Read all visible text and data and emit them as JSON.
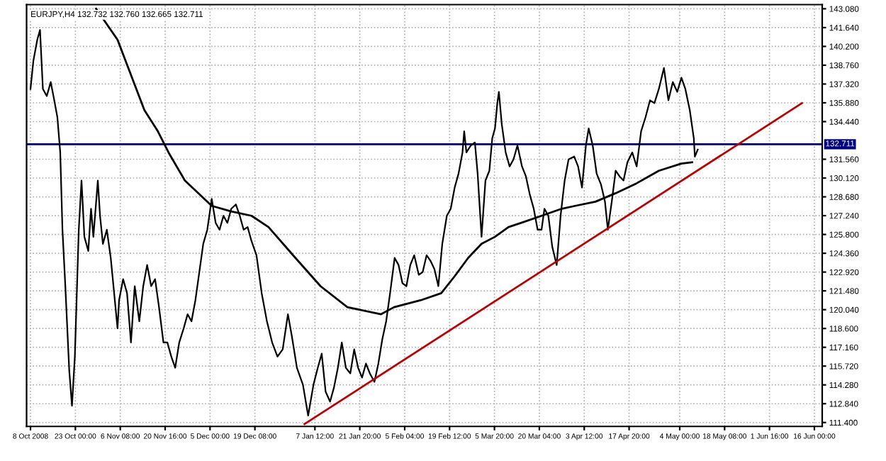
{
  "chart_data": {
    "type": "line",
    "title": "EURJPY,H4 132.732 132.760 132.665 132.711",
    "xlim": [
      "2008-10-07T10:00",
      "2009-06-18T12:00"
    ],
    "ylim": [
      111.1,
      143.4
    ],
    "xticks": [
      {
        "value": "2008-10-08T16:00",
        "label": "8 Oct 2008"
      },
      {
        "value": "2008-10-23T00:00",
        "label": "23 Oct 00:00"
      },
      {
        "value": "2008-11-06T08:00",
        "label": "6 Nov 08:00"
      },
      {
        "value": "2008-11-20T16:00",
        "label": "20 Nov 16:00"
      },
      {
        "value": "2008-12-05T00:00",
        "label": "5 Dec 00:00"
      },
      {
        "value": "2008-12-19T08:00",
        "label": "19 Dec 08:00"
      },
      {
        "value": "2009-01-07T12:00",
        "label": "7 Jan 12:00"
      },
      {
        "value": "2009-01-21T20:00",
        "label": "21 Jan 20:00"
      },
      {
        "value": "2009-02-05T04:00",
        "label": "5 Feb 04:00"
      },
      {
        "value": "2009-02-19T12:00",
        "label": "19 Feb 12:00"
      },
      {
        "value": "2009-03-05T20:00",
        "label": "5 Mar 20:00"
      },
      {
        "value": "2009-03-20T04:00",
        "label": "20 Mar 04:00"
      },
      {
        "value": "2009-04-03T12:00",
        "label": "3 Apr 12:00"
      },
      {
        "value": "2009-04-17T20:00",
        "label": "17 Apr 20:00"
      },
      {
        "value": "2009-05-04T00:00",
        "label": "4 May 00:00"
      },
      {
        "value": "2009-05-18T08:00",
        "label": "18 May 08:00"
      },
      {
        "value": "2009-06-01T16:00",
        "label": "1 Jun 16:00"
      },
      {
        "value": "2009-06-16T00:00",
        "label": "16 Jun 00:00"
      }
    ],
    "yticks": [
      {
        "value": 111.4,
        "label": "111.400"
      },
      {
        "value": 112.84,
        "label": "112.840"
      },
      {
        "value": 114.28,
        "label": "114.280"
      },
      {
        "value": 115.72,
        "label": "115.720"
      },
      {
        "value": 117.16,
        "label": "117.160"
      },
      {
        "value": 118.6,
        "label": "118.600"
      },
      {
        "value": 120.04,
        "label": "120.040"
      },
      {
        "value": 121.48,
        "label": "121.480"
      },
      {
        "value": 122.92,
        "label": "122.920"
      },
      {
        "value": 124.36,
        "label": "124.360"
      },
      {
        "value": 125.8,
        "label": "125.800"
      },
      {
        "value": 127.24,
        "label": "127.240"
      },
      {
        "value": 128.68,
        "label": "128.680"
      },
      {
        "value": 130.12,
        "label": "130.120"
      },
      {
        "value": 131.56,
        "label": "131.560"
      },
      {
        "value": 134.44,
        "label": "134.440"
      },
      {
        "value": 135.88,
        "label": "135.880"
      },
      {
        "value": 137.32,
        "label": "137.320"
      },
      {
        "value": 138.76,
        "label": "138.760"
      },
      {
        "value": 140.2,
        "label": "140.200"
      },
      {
        "value": 141.64,
        "label": "141.640"
      },
      {
        "value": 143.08,
        "label": "143.080"
      }
    ],
    "grid": true,
    "line_style": "solid",
    "marker": "none",
    "ref_lines": [
      {
        "axis": "y",
        "value": 132.711,
        "label": "132.711",
        "color": "#000080"
      }
    ],
    "series": [
      {
        "color": "#000000",
        "x": [
          "2008-10-08T16:00",
          "2008-10-09T14:00",
          "2008-10-10T20:00",
          "2008-10-11T17:00",
          "2008-10-12T15:00",
          "2008-10-13T21:00",
          "2008-10-15T03:00",
          "2008-10-16T00:00",
          "2008-10-17T06:00",
          "2008-10-18T04:00",
          "2008-10-18T21:00",
          "2008-10-19T19:00",
          "2008-10-21T01:00",
          "2008-10-21T22:00",
          "2008-10-22T20:00",
          "2008-10-24T02:00",
          "2008-10-24T23:00",
          "2008-10-25T21:00",
          "2008-10-27T03:00",
          "2008-10-28T00:00",
          "2008-10-28T18:00",
          "2008-10-30T04:00",
          "2008-10-30T21:00",
          "2008-10-31T19:00",
          "2008-11-02T01:00",
          "2008-11-03T07:00",
          "2008-11-04T04:00",
          "2008-11-05T11:00",
          "2008-11-05T23:00",
          "2008-11-07T06:00",
          "2008-11-08T12:00",
          "2008-11-09T18:00",
          "2008-11-10T23:00",
          "2008-11-12T10:00",
          "2008-11-13T16:00",
          "2008-11-14T22:00",
          "2008-11-16T05:00",
          "2008-11-17T11:00",
          "2008-11-18T17:00",
          "2008-11-20T03:00",
          "2008-11-21T09:00",
          "2008-11-22T15:00",
          "2008-11-23T21:00",
          "2008-11-25T04:00",
          "2008-11-26T14:00",
          "2008-11-27T20:00",
          "2008-11-29T02:00",
          "2008-11-30T08:00",
          "2008-12-01T14:00",
          "2008-12-02T20:00",
          "2008-12-04T03:00",
          "2008-12-05T13:00",
          "2008-12-06T19:00",
          "2008-12-08T01:00",
          "2008-12-09T07:00",
          "2008-12-10T13:00",
          "2008-12-11T19:00",
          "2008-12-13T06:00",
          "2008-12-14T12:00",
          "2008-12-15T18:00",
          "2008-12-17T00:00",
          "2008-12-18T06:00",
          "2008-12-19T20:00",
          "2008-12-21T12:00",
          "2008-12-23T04:00",
          "2008-12-24T20:00",
          "2008-12-26T13:00",
          "2008-12-28T05:00",
          "2008-12-29T21:00",
          "2008-12-31T02:00",
          "2009-01-01T18:00",
          "2009-01-03T16:00",
          "2009-01-05T08:00",
          "2009-01-07T01:00",
          "2009-01-08T10:00",
          "2009-01-09T16:00",
          "2009-01-10T22:00",
          "2009-01-12T08:00",
          "2009-01-13T14:00",
          "2009-01-14T20:00",
          "2009-01-16T02:00",
          "2009-01-17T09:00",
          "2009-01-18T19:00",
          "2009-01-20T01:00",
          "2009-01-21T07:00",
          "2009-01-22T13:00",
          "2009-01-23T19:00",
          "2009-01-25T01:00",
          "2009-01-26T12:00",
          "2009-01-27T18:00",
          "2009-01-29T00:00",
          "2009-01-30T06:00",
          "2009-01-31T12:00",
          "2009-02-01T23:00",
          "2009-02-03T05:00",
          "2009-02-04T11:00",
          "2009-02-05T17:00",
          "2009-02-06T23:00",
          "2009-02-08T05:00",
          "2009-02-09T16:00",
          "2009-02-10T22:00",
          "2009-02-12T04:00",
          "2009-02-13T10:00",
          "2009-02-14T16:00",
          "2009-02-15T22:00",
          "2009-02-17T04:00",
          "2009-02-18T15:00",
          "2009-02-19T21:00",
          "2009-02-21T03:00",
          "2009-02-22T09:00",
          "2009-02-23T15:00",
          "2009-02-24T04:00",
          "2009-02-24T21:00",
          "2009-02-26T07:00",
          "2009-02-27T14:00",
          "2009-02-28T11:00",
          "2009-03-01T17:00",
          "2009-03-02T23:00",
          "2009-03-04T05:00",
          "2009-03-05T03:00",
          "2009-03-06T00:00",
          "2009-03-06T18:00",
          "2009-03-07T06:00",
          "2009-03-08T04:00",
          "2009-03-09T10:00",
          "2009-03-10T16:00",
          "2009-03-11T22:00",
          "2009-03-13T04:00",
          "2009-03-14T15:00",
          "2009-03-15T21:00",
          "2009-03-17T03:00",
          "2009-03-18T09:00",
          "2009-03-19T15:00",
          "2009-03-20T21:00",
          "2009-03-21T19:00",
          "2009-03-23T01:00",
          "2009-03-24T07:00",
          "2009-03-25T17:00",
          "2009-03-26T23:00",
          "2009-03-28T06:00",
          "2009-03-29T12:00",
          "2009-03-31T07:00",
          "2009-04-01T13:00",
          "2009-04-02T19:00",
          "2009-04-04T01:00",
          "2009-04-04T22:00",
          "2009-04-06T05:00",
          "2009-04-07T11:00",
          "2009-04-08T21:00",
          "2009-04-10T03:00",
          "2009-04-11T01:00",
          "2009-04-12T07:00",
          "2009-04-13T13:00",
          "2009-04-14T19:00",
          "2009-04-16T01:00",
          "2009-04-17T07:00",
          "2009-04-18T20:00",
          "2009-04-20T06:00",
          "2009-04-21T16:00",
          "2009-04-23T02:00",
          "2009-04-24T12:00",
          "2009-04-25T22:00",
          "2009-04-27T08:00",
          "2009-04-28T23:00",
          "2009-04-30T09:00",
          "2009-05-01T19:00",
          "2009-05-03T05:00",
          "2009-05-04T13:00",
          "2009-05-05T19:00",
          "2009-05-07T05:00",
          "2009-05-08T12:00",
          "2009-05-08T20:00",
          "2009-05-09T18:00"
        ],
        "values": [
          136.94,
          139.09,
          140.71,
          141.46,
          136.94,
          136.4,
          137.47,
          136.4,
          134.78,
          132.08,
          126.16,
          121.84,
          115.38,
          112.68,
          116.45,
          126.16,
          129.93,
          125.62,
          124.54,
          127.77,
          125.62,
          129.93,
          127.23,
          125.08,
          126.16,
          124.0,
          121.84,
          118.61,
          120.77,
          122.38,
          121.3,
          117.53,
          121.84,
          119.15,
          121.84,
          123.46,
          121.84,
          122.38,
          120.23,
          117.53,
          117.53,
          116.45,
          115.59,
          117.53,
          118.61,
          119.69,
          119.15,
          120.77,
          122.92,
          125.08,
          126.16,
          128.53,
          126.69,
          126.16,
          127.23,
          126.69,
          127.77,
          128.1,
          127.23,
          126.16,
          126.37,
          125.29,
          124.21,
          121.3,
          119.15,
          117.53,
          116.45,
          117.0,
          119.69,
          118.08,
          115.59,
          114.3,
          111.93,
          114.3,
          115.59,
          116.67,
          113.76,
          113.0,
          114.08,
          115.59,
          117.53,
          115.59,
          115.16,
          117.0,
          115.59,
          114.84,
          115.91,
          115.16,
          114.51,
          115.91,
          117.75,
          119.15,
          121.3,
          124.0,
          123.46,
          122.06,
          121.84,
          123.46,
          124.21,
          122.71,
          122.92,
          124.21,
          123.78,
          123.14,
          121.84,
          125.08,
          127.23,
          127.77,
          129.39,
          130.47,
          132.08,
          133.7,
          132.08,
          132.62,
          132.84,
          130.47,
          125.62,
          129.93,
          130.68,
          133.16,
          133.92,
          135.86,
          136.72,
          134.24,
          132.08,
          131.01,
          131.55,
          132.62,
          131.01,
          130.25,
          128.85,
          127.77,
          126.16,
          126.16,
          127.77,
          127.23,
          124.86,
          123.46,
          127.23,
          129.93,
          131.55,
          131.77,
          131.01,
          129.39,
          132.62,
          133.92,
          132.62,
          130.47,
          129.61,
          128.31,
          126.16,
          128.31,
          130.68,
          130.25,
          129.93,
          131.33,
          132.08,
          131.01,
          133.7,
          134.78,
          136.07,
          135.86,
          136.94,
          138.55,
          136.07,
          137.47,
          136.72,
          137.8,
          136.94,
          135.32,
          133.16,
          131.76,
          132.3
        ]
      },
      {
        "color": "#000000",
        "x": [
          "2008-10-29T15:00",
          "2008-11-05T11:00",
          "2008-11-14T01:00",
          "2008-11-18T08:00",
          "2008-11-21T18:00",
          "2008-11-26T23:00",
          "2008-12-05T13:00",
          "2008-12-11T19:00",
          "2008-12-18T06:00",
          "2008-12-23T16:00",
          "2009-01-01T07:00",
          "2009-01-09T07:00",
          "2009-01-17T21:00",
          "2009-01-28T15:00",
          "2009-02-01T18:00",
          "2009-02-10T09:00",
          "2009-02-16T20:00",
          "2009-02-21T03:00",
          "2009-02-25T10:00",
          "2009-03-01T17:00",
          "2009-03-06T00:00",
          "2009-03-10T08:00",
          "2009-03-14T10:00",
          "2009-03-20T21:00",
          "2009-03-27T08:00",
          "2009-03-31T15:00",
          "2009-04-07T02:00",
          "2009-04-13T13:00",
          "2009-04-20T06:00",
          "2009-04-27T08:00",
          "2009-05-04T13:00",
          "2009-05-07T23:00"
        ],
        "values": [
          143.08,
          140.71,
          135.32,
          133.7,
          132.08,
          129.93,
          127.99,
          127.56,
          127.23,
          126.37,
          124.0,
          121.84,
          120.23,
          119.69,
          120.23,
          120.77,
          121.3,
          122.6,
          124.0,
          125.08,
          125.62,
          126.37,
          126.69,
          127.23,
          127.77,
          127.99,
          128.31,
          128.96,
          129.72,
          130.68,
          131.23,
          131.33
        ]
      },
      {
        "color": "#c00000",
        "x": [
          "2009-01-04T04:00",
          "2009-06-12T01:00"
        ],
        "values": [
          111.28,
          135.86
        ]
      }
    ]
  }
}
